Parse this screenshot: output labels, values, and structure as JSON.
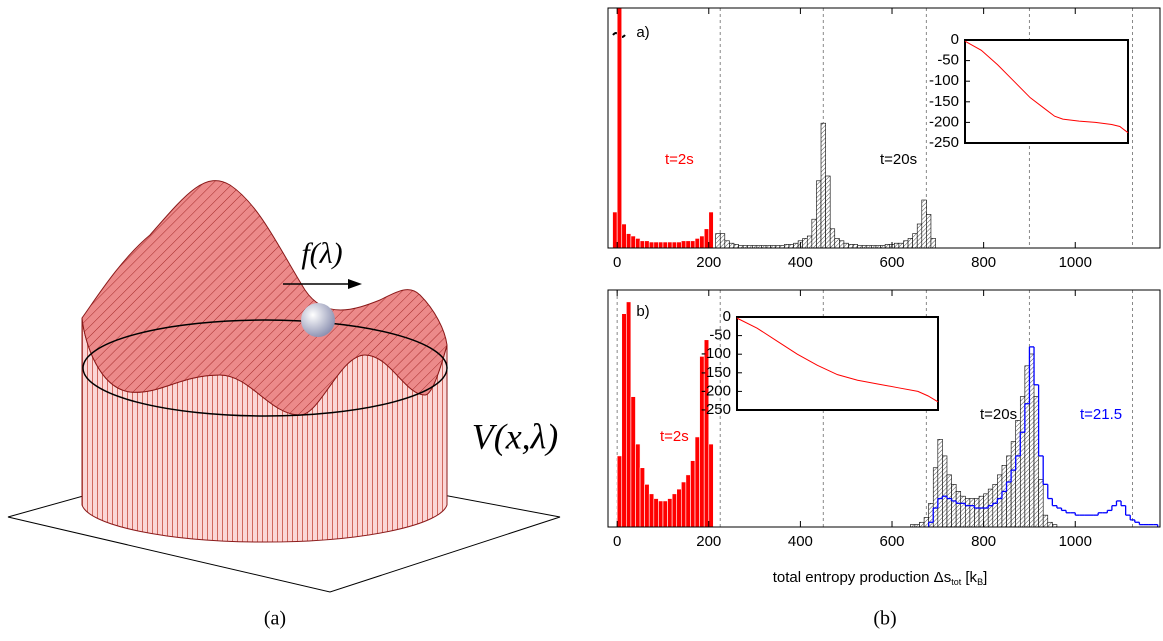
{
  "figure": {
    "force_label": "f(λ)",
    "potential_label": "V(x,λ)",
    "caption_a": "(a)",
    "caption_b": "(b)"
  },
  "chart_data": [
    {
      "type": "histogram",
      "panel_label": "a)",
      "xlim": [
        -20,
        1185
      ],
      "ylim": [
        0,
        100
      ],
      "xticks": [
        0,
        200,
        400,
        600,
        800,
        1000
      ],
      "vlines": [
        225,
        450,
        675,
        900,
        1125
      ],
      "series": [
        {
          "name": "t=2s",
          "color": "#ff0000",
          "style": "solid",
          "bins": [
            -10,
            0,
            10,
            20,
            30,
            40,
            50,
            60,
            70,
            80,
            90,
            100,
            110,
            120,
            130,
            140,
            150,
            160,
            170,
            180,
            190,
            200,
            210
          ],
          "values": [
            15,
            100,
            10,
            6,
            5,
            4,
            3,
            3,
            2.5,
            2.5,
            2.5,
            2.5,
            2.5,
            2.5,
            2.5,
            3,
            3,
            3,
            4,
            5,
            8,
            15
          ]
        },
        {
          "name": "t=20s",
          "color": "#555555",
          "style": "hatched",
          "bins": [
            215,
            225,
            235,
            245,
            255,
            265,
            275,
            285,
            295,
            305,
            315,
            325,
            335,
            345,
            355,
            365,
            375,
            385,
            395,
            405,
            415,
            425,
            435,
            445,
            455,
            465,
            475,
            485,
            495,
            505,
            515,
            525,
            535,
            545,
            555,
            565,
            575,
            585,
            595,
            605,
            615,
            625,
            635,
            645,
            655,
            665,
            675,
            685,
            695
          ],
          "values": [
            6,
            6,
            3,
            2,
            1.5,
            1,
            1,
            1,
            1,
            1,
            1,
            1,
            1,
            1,
            1,
            1.5,
            1.5,
            2,
            3,
            4,
            5,
            12,
            28,
            52,
            30,
            8,
            4,
            3,
            2,
            1.5,
            1.5,
            1,
            1,
            1,
            1,
            1,
            1,
            1.5,
            1.5,
            2,
            2,
            3,
            4,
            6,
            10,
            20,
            14,
            4
          ]
        }
      ]
    },
    {
      "type": "histogram",
      "panel_label": "b)",
      "xlim": [
        -20,
        1185
      ],
      "ylim": [
        0,
        100
      ],
      "xticks": [
        0,
        200,
        400,
        600,
        800,
        1000
      ],
      "vlines": [
        0,
        225,
        450,
        675,
        900,
        1125
      ],
      "xlabel_parts": [
        {
          "text": "total entropy production Δs",
          "sub": false
        },
        {
          "text": "tot",
          "sub": true
        },
        {
          "text": " [k",
          "sub": false
        },
        {
          "text": "B",
          "sub": true
        },
        {
          "text": "]",
          "sub": false
        }
      ],
      "series": [
        {
          "name": "t=2s",
          "color": "#ff0000",
          "style": "solid",
          "bins": [
            0,
            10,
            20,
            30,
            40,
            50,
            60,
            70,
            80,
            90,
            100,
            110,
            120,
            130,
            140,
            150,
            160,
            170,
            180,
            190,
            200,
            210
          ],
          "values": [
            30,
            90,
            95,
            55,
            35,
            25,
            18,
            14,
            12,
            11,
            11,
            12,
            14,
            16,
            19,
            22,
            28,
            38,
            72,
            79,
            35
          ]
        },
        {
          "name": "t=20s",
          "color": "#555555",
          "style": "hatched",
          "bins": [
            640,
            650,
            660,
            670,
            680,
            690,
            700,
            710,
            720,
            730,
            740,
            750,
            760,
            770,
            780,
            790,
            800,
            810,
            820,
            830,
            840,
            850,
            860,
            870,
            880,
            890,
            900,
            910,
            920,
            930,
            940,
            950,
            960
          ],
          "values": [
            1,
            1,
            2,
            4,
            10,
            25,
            37,
            30,
            22,
            18,
            15,
            13,
            12,
            12,
            12,
            13,
            14,
            16,
            18,
            22,
            26,
            30,
            36,
            45,
            55,
            68,
            73,
            55,
            20,
            5,
            2,
            1
          ]
        },
        {
          "name": "t=21.5",
          "color": "#0000ff",
          "style": "step",
          "bins": [
            680,
            690,
            700,
            710,
            720,
            730,
            740,
            750,
            760,
            770,
            780,
            790,
            800,
            810,
            820,
            830,
            840,
            850,
            860,
            870,
            880,
            890,
            900,
            910,
            920,
            930,
            940,
            950,
            960,
            970,
            980,
            990,
            1000,
            1010,
            1020,
            1030,
            1040,
            1050,
            1060,
            1070,
            1080,
            1090,
            1100,
            1110,
            1120,
            1130,
            1140,
            1150,
            1160,
            1170,
            1180
          ],
          "values": [
            2,
            8,
            12,
            13,
            12,
            11,
            10,
            10,
            9,
            9,
            8,
            8,
            8,
            9,
            10,
            12,
            15,
            19,
            24,
            30,
            40,
            52,
            76,
            60,
            30,
            18,
            12,
            9,
            8,
            7,
            6,
            6,
            5,
            5,
            5,
            5,
            5,
            6,
            6,
            7,
            9,
            11,
            9,
            5,
            3,
            2,
            1,
            1,
            1,
            1
          ]
        }
      ]
    },
    {
      "type": "line",
      "xlim": [
        0,
        100
      ],
      "ylim": [
        -250,
        0
      ],
      "yticks": [
        0,
        -50,
        -100,
        -150,
        -200,
        -250
      ],
      "series": [
        {
          "color": "#ff0000",
          "x": [
            0,
            10,
            20,
            30,
            40,
            50,
            55,
            60,
            70,
            80,
            90,
            95,
            100
          ],
          "values": [
            -3,
            -25,
            -60,
            -100,
            -140,
            -170,
            -185,
            -192,
            -197,
            -200,
            -205,
            -210,
            -225
          ]
        }
      ]
    },
    {
      "type": "line",
      "xlim": [
        0,
        100
      ],
      "ylim": [
        -250,
        0
      ],
      "yticks": [
        0,
        -50,
        -100,
        -150,
        -200,
        -250
      ],
      "series": [
        {
          "color": "#ff0000",
          "x": [
            0,
            10,
            20,
            30,
            40,
            50,
            60,
            70,
            80,
            90,
            95,
            100
          ],
          "values": [
            -3,
            -30,
            -65,
            -100,
            -130,
            -155,
            -170,
            -180,
            -190,
            -200,
            -212,
            -228
          ]
        }
      ]
    }
  ]
}
